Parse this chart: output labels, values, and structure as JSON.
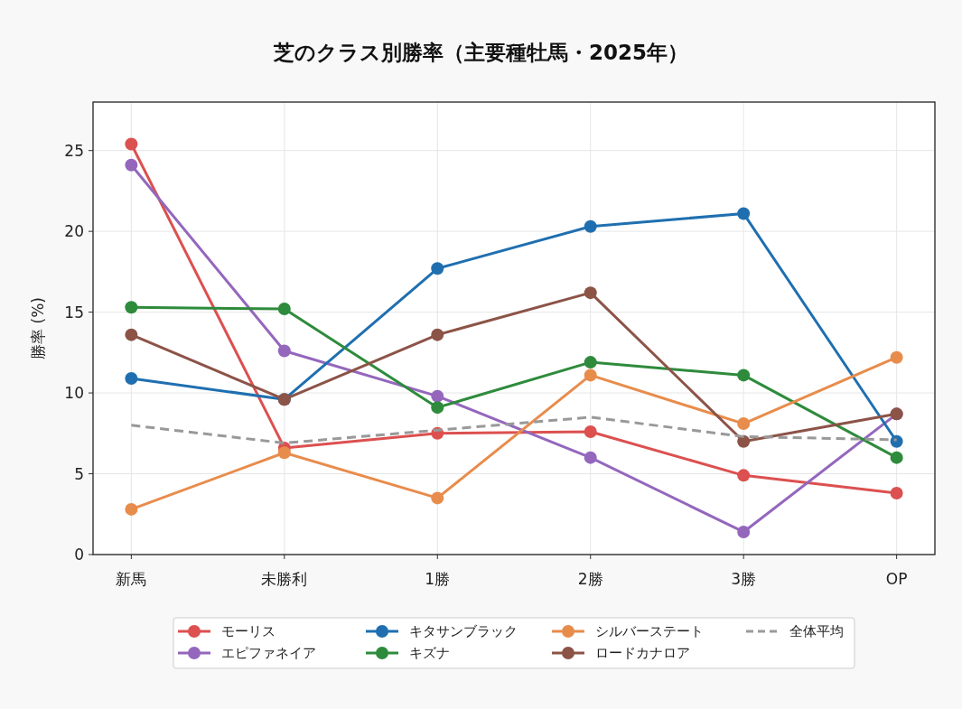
{
  "chart_data": {
    "type": "line",
    "title": "芝のクラス別勝率（主要種牡馬・2025年）",
    "ylabel": "勝率 (%)",
    "categories": [
      "新馬",
      "未勝利",
      "1勝",
      "2勝",
      "3勝",
      "OP"
    ],
    "series": [
      {
        "name": "モーリス",
        "color": "#dc5050",
        "values": [
          25.4,
          6.6,
          7.5,
          7.6,
          4.9,
          3.8
        ]
      },
      {
        "name": "エピファネイア",
        "color": "#9467bd",
        "values": [
          24.1,
          12.6,
          9.8,
          6.0,
          1.4,
          8.7
        ]
      },
      {
        "name": "キタサンブラック",
        "color": "#1f6fb0",
        "values": [
          10.9,
          9.6,
          17.7,
          20.3,
          21.1,
          7.0
        ]
      },
      {
        "name": "キズナ",
        "color": "#2e8b3c",
        "values": [
          15.3,
          15.2,
          9.1,
          11.9,
          11.1,
          6.0
        ]
      },
      {
        "name": "シルバーステート",
        "color": "#e88c4c",
        "values": [
          2.8,
          6.3,
          3.5,
          11.1,
          8.1,
          12.2
        ]
      },
      {
        "name": "ロードカナロア",
        "color": "#8c5347",
        "values": [
          13.6,
          9.6,
          13.6,
          16.2,
          7.0,
          8.7
        ]
      },
      {
        "name": "全体平均",
        "color": "#999999",
        "line_style": "dashed",
        "marker": "none",
        "values": [
          8.0,
          6.9,
          7.7,
          8.5,
          7.3,
          7.1
        ]
      }
    ],
    "ylim": [
      0,
      28
    ],
    "yticks": [
      0,
      5,
      10,
      15,
      20,
      25
    ],
    "grid": true,
    "legend": "bottom",
    "marker": "circle",
    "line_style": "solid"
  }
}
